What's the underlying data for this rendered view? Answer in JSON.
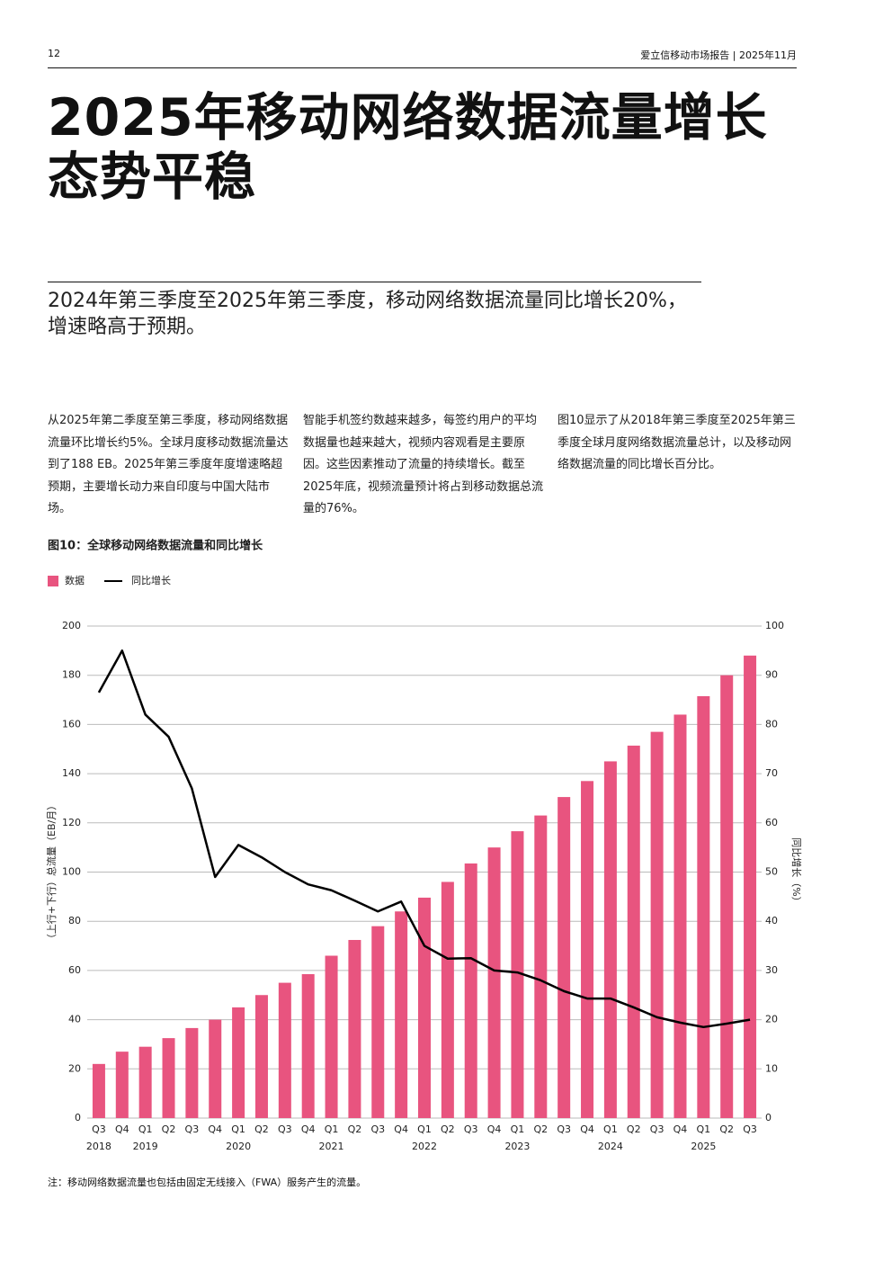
{
  "header": {
    "page_number": "12",
    "report": "爱立信移动市场报告 | 2025年11月"
  },
  "title_lines": [
    "2025年移动网络数据流量增长",
    "态势平稳"
  ],
  "subtitle_lines": [
    "2024年第三季度至2025年第三季度，移动网络数据流量同比增长20%，",
    "增速略高于预期。"
  ],
  "body_columns": [
    "从2025年第二季度至第三季度，移动网络数据流量环比增长约5%。全球月度移动数据流量达到了188 EB。2025年第三季度年度增速略超预期，主要增长动力来自印度与中国大陆市场。",
    "智能手机签约数越来越多，每签约用户的平均数据量也越来越大，视频内容观看是主要原因。这些因素推动了流量的持续增长。截至2025年底，视频流量预计将占到移动数据总流量的76%。",
    "图10显示了从2018年第三季度至2025年第三季度全球月度网络数据流量总计，以及移动网络数据流量的同比增长百分比。"
  ],
  "note": "注：移动网络数据流量也包括由固定无线接入（FWA）服务产生的流量。",
  "chart_data": {
    "type": "combo",
    "title": "图10：全球移动网络数据流量和同比增长",
    "categories": [
      "Q3",
      "Q4",
      "Q1",
      "Q2",
      "Q3",
      "Q4",
      "Q1",
      "Q2",
      "Q3",
      "Q4",
      "Q1",
      "Q2",
      "Q3",
      "Q4",
      "Q1",
      "Q2",
      "Q3",
      "Q4",
      "Q1",
      "Q2",
      "Q3",
      "Q4",
      "Q1",
      "Q2",
      "Q3",
      "Q4",
      "Q1",
      "Q2",
      "Q3"
    ],
    "year_labels": [
      "2018",
      null,
      "2019",
      null,
      null,
      null,
      "2020",
      null,
      null,
      null,
      "2021",
      null,
      null,
      null,
      "2022",
      null,
      null,
      null,
      "2023",
      null,
      null,
      null,
      "2024",
      null,
      null,
      null,
      "2025",
      null,
      null
    ],
    "series": [
      {
        "name": "数据",
        "type": "bar",
        "color": "#e8547f",
        "values": [
          22,
          27,
          29,
          32.5,
          36.6,
          40,
          45,
          50,
          55,
          58.5,
          66,
          72.4,
          78,
          84,
          89.6,
          96,
          103.5,
          110,
          116.6,
          123,
          130.5,
          137,
          145,
          151.4,
          157,
          164,
          171.5,
          180,
          188
        ]
      },
      {
        "name": "同比增长",
        "type": "line",
        "color": "#000000",
        "axis": "y2",
        "values": [
          86.5,
          95,
          82,
          77.5,
          67,
          49,
          55.5,
          53,
          50,
          47.5,
          46.3,
          44.2,
          42,
          44,
          35,
          32.4,
          32.5,
          30,
          29.6,
          28,
          25.8,
          24.3,
          24.3,
          22.5,
          20.5,
          19.4,
          18.5,
          19.2,
          20
        ]
      }
    ],
    "ylabel": "（上行+下行）总流量（EB/月）",
    "y2label": "同比增长（%）",
    "ylim": [
      0,
      200
    ],
    "yticks": [
      0,
      20,
      40,
      60,
      80,
      100,
      120,
      140,
      160,
      180,
      200
    ],
    "y2lim": [
      0,
      100
    ],
    "y2ticks": [
      0,
      10,
      20,
      30,
      40,
      50,
      60,
      70,
      80,
      90,
      100
    ],
    "grid": true,
    "legend": "top-left"
  }
}
